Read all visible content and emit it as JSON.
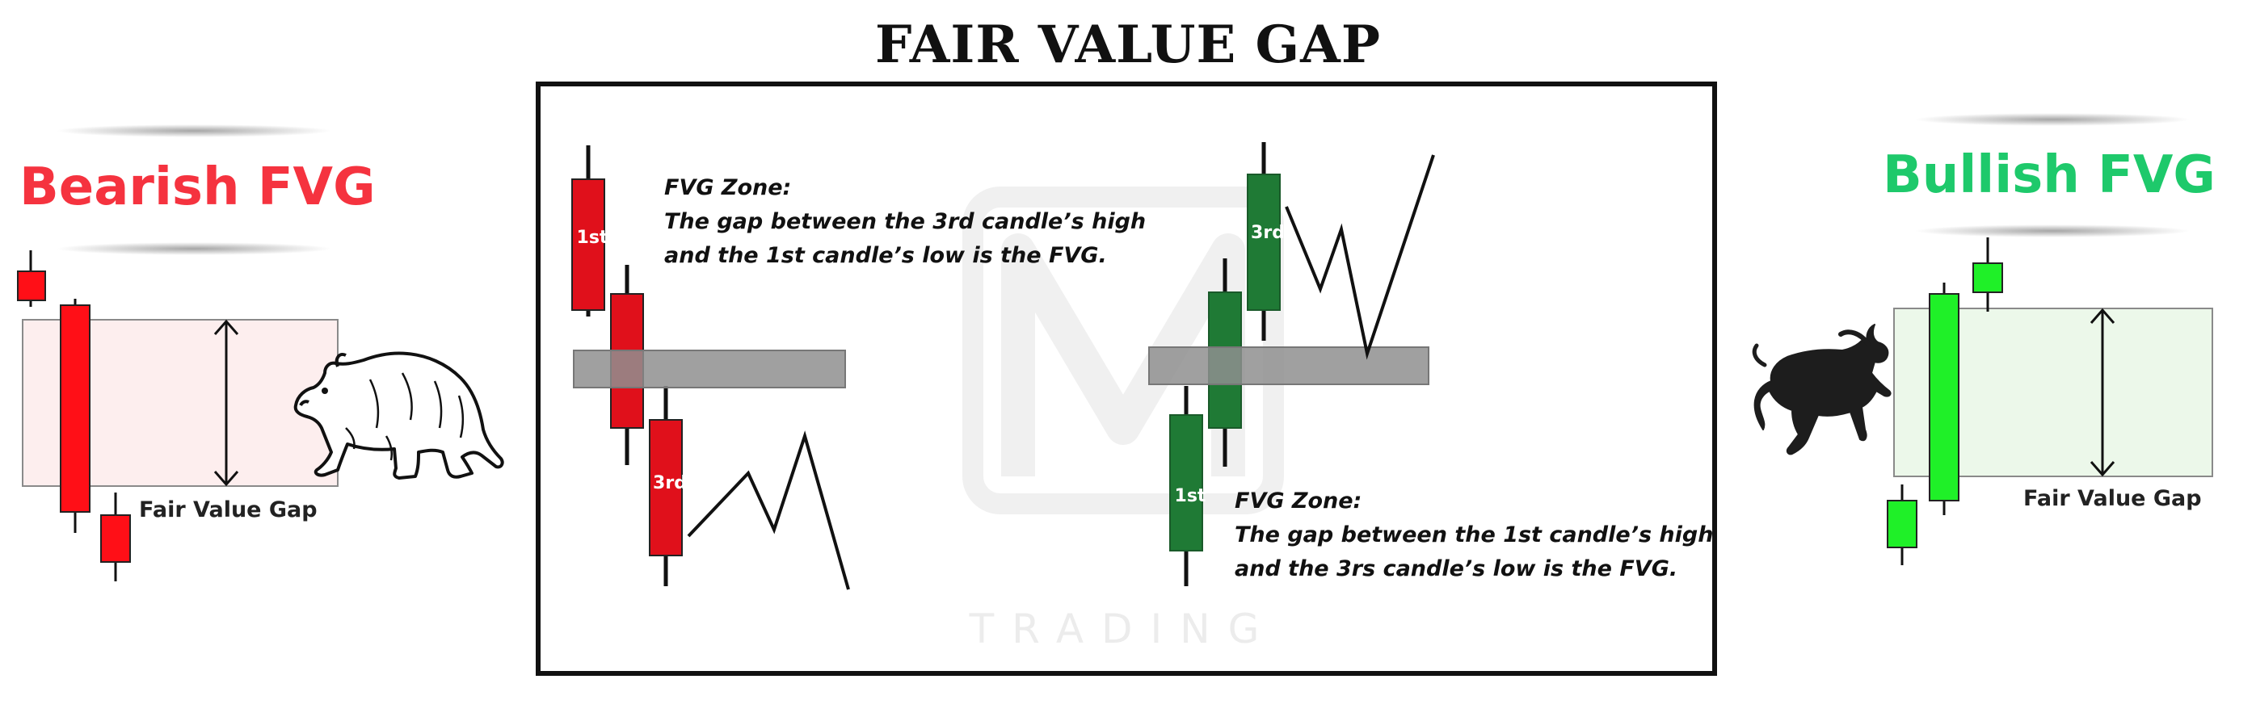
{
  "title": "FAIR VALUE GAP",
  "bearish": {
    "heading": "Bearish FVG",
    "gap_label": "Fair Value Gap",
    "color": "#f5333f",
    "candle_color": "#ff0f17"
  },
  "bullish": {
    "heading": "Bullish FVG",
    "gap_label": "Fair Value Gap",
    "color": "#1ec96b",
    "candle_color": "#1ff028"
  },
  "center": {
    "bearish_example": {
      "candle_1_label": "1st",
      "candle_3_label": "3rd",
      "zone_title": "FVG Zone:",
      "zone_line_1": "The gap between the 3rd candle’s high",
      "zone_line_2": "and the 1st candle’s low is the FVG."
    },
    "bullish_example": {
      "candle_1_label": "1st",
      "candle_3_label": "3rd",
      "zone_title": "FVG Zone:",
      "zone_line_1": "The gap between the 1st candle’s high",
      "zone_line_2": "and the 3rs candle’s low is the FVG."
    },
    "zone_color": "#9a9a9a",
    "red_candle": "#e0101b",
    "green_candle": "#1f7a35"
  },
  "watermark": {
    "text": "TRADING"
  }
}
